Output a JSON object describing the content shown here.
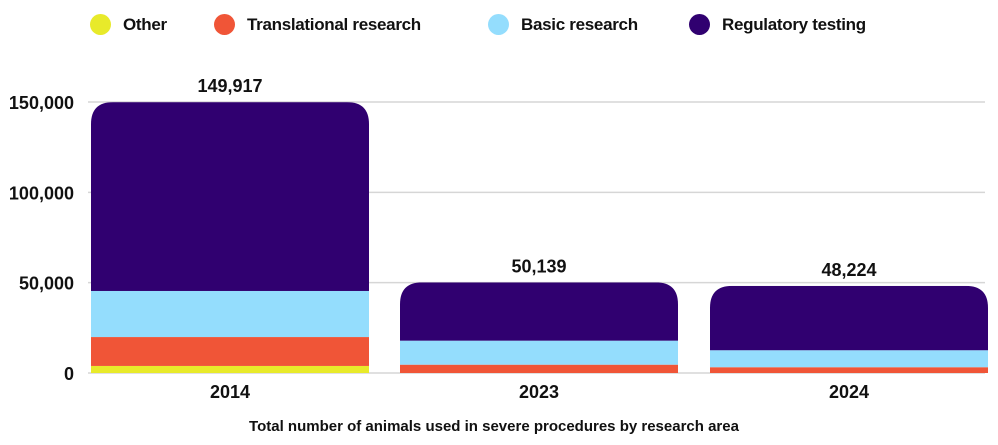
{
  "chart_data": {
    "type": "bar",
    "stacked": true,
    "categories": [
      "2014",
      "2023",
      "2024"
    ],
    "series": [
      {
        "name": "Other",
        "color": "#e8ea2a",
        "values": [
          3900,
          0,
          0
        ]
      },
      {
        "name": "Translational research",
        "color": "#f05537",
        "values": [
          16000,
          4600,
          3200
        ]
      },
      {
        "name": "Basic research",
        "color": "#94ddfd",
        "values": [
          25500,
          13300,
          9400
        ]
      },
      {
        "name": "Regulatory testing",
        "color": "#300070",
        "values": [
          104517,
          32239,
          35624
        ]
      }
    ],
    "totals": [
      "149,917",
      "50,139",
      "48,224"
    ],
    "total_values": [
      149917,
      50139,
      48224
    ],
    "ylim": [
      0,
      150000
    ],
    "yticks": [
      0,
      50000,
      100000,
      150000
    ],
    "ytick_labels": [
      "0",
      "50,000",
      "100,000",
      "150,000"
    ],
    "xlabel": "Total number of animals used in severe procedures by research area",
    "ylabel": "",
    "grid": true,
    "legend_position": "top"
  }
}
